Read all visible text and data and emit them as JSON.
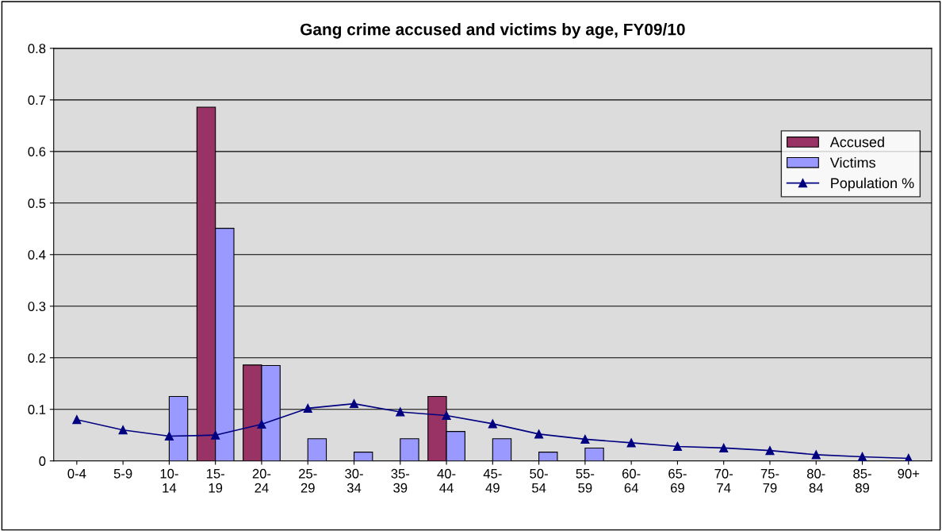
{
  "chart_data": {
    "type": "bar",
    "title": "Gang crime accused and victims by age, FY09/10",
    "categories": [
      "0-4",
      "5-9",
      "10-\n14",
      "15-\n19",
      "20-\n24",
      "25-\n29",
      "30-\n34",
      "35-\n39",
      "40-\n44",
      "45-\n49",
      "50-\n54",
      "55-\n59",
      "60-\n64",
      "65-\n69",
      "70-\n74",
      "75-\n79",
      "80-\n84",
      "85-\n89",
      "90+"
    ],
    "series": [
      {
        "name": "Accused",
        "color": "#993366",
        "values": [
          null,
          null,
          null,
          0.686,
          0.186,
          null,
          null,
          null,
          0.125,
          null,
          null,
          null,
          null,
          null,
          null,
          null,
          null,
          null,
          null
        ]
      },
      {
        "name": "Victims",
        "color": "#9999ff",
        "values": [
          null,
          null,
          0.125,
          0.451,
          0.185,
          0.043,
          0.017,
          0.043,
          0.057,
          0.043,
          0.017,
          0.025,
          null,
          null,
          null,
          null,
          null,
          null,
          null
        ]
      },
      {
        "name": "Population %",
        "type": "line",
        "color": "#000080",
        "marker": "triangle",
        "values": [
          0.08,
          0.06,
          0.048,
          0.05,
          0.071,
          0.102,
          0.111,
          0.095,
          0.088,
          0.072,
          0.052,
          0.042,
          0.035,
          0.028,
          0.025,
          0.02,
          0.012,
          0.008,
          0.005
        ]
      }
    ],
    "ylim": [
      0,
      0.8
    ],
    "yticks": [
      0,
      0.1,
      0.2,
      0.3,
      0.4,
      0.5,
      0.6,
      0.7,
      0.8
    ],
    "grid": "y",
    "legend": "right"
  }
}
